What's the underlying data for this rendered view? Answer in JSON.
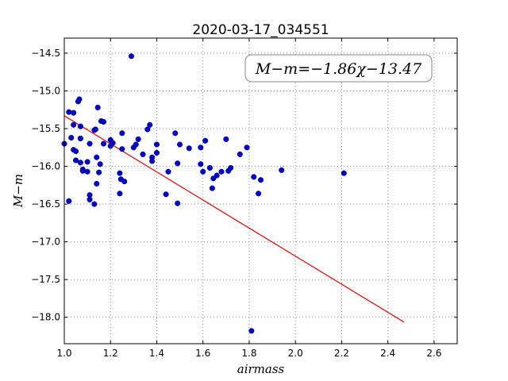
{
  "chart_data": {
    "type": "scatter",
    "title": "2020-03-17_034551",
    "xlabel": "airmass",
    "ylabel": "M−m",
    "xlim": [
      1.0,
      2.7
    ],
    "ylim": [
      -18.35,
      -14.3
    ],
    "y_inverted": true,
    "grid": true,
    "xticks": [
      "1.0",
      "1.2",
      "1.4",
      "1.6",
      "1.8",
      "2.0",
      "2.2",
      "2.4",
      "2.6"
    ],
    "yticks": [
      "−14.5",
      "−15.0",
      "−15.5",
      "−16.0",
      "−16.5",
      "−17.0",
      "−17.5",
      "−18.0"
    ],
    "annotation": "M−m=−1.86χ−13.47",
    "colors": {
      "points": "#0000cc",
      "fit_line": "#dd0000",
      "grid": "#888888"
    },
    "fit": {
      "slope": -1.86,
      "intercept": -13.47,
      "x_range": [
        1.0,
        2.47
      ]
    },
    "points": [
      [
        1.0,
        -15.7
      ],
      [
        1.02,
        -15.28
      ],
      [
        1.02,
        -16.46
      ],
      [
        1.03,
        -15.62
      ],
      [
        1.04,
        -15.29
      ],
      [
        1.04,
        -15.45
      ],
      [
        1.04,
        -15.78
      ],
      [
        1.05,
        -15.92
      ],
      [
        1.05,
        -15.8
      ],
      [
        1.06,
        -15.14
      ],
      [
        1.065,
        -15.11
      ],
      [
        1.07,
        -15.47
      ],
      [
        1.07,
        -15.63
      ],
      [
        1.07,
        -15.63
      ],
      [
        1.07,
        -15.95
      ],
      [
        1.08,
        -16.04
      ],
      [
        1.08,
        -16.06
      ],
      [
        1.1,
        -15.94
      ],
      [
        1.1,
        -16.07
      ],
      [
        1.11,
        -16.38
      ],
      [
        1.11,
        -16.44
      ],
      [
        1.11,
        -15.7
      ],
      [
        1.13,
        -16.5
      ],
      [
        1.13,
        -15.52
      ],
      [
        1.135,
        -15.51
      ],
      [
        1.14,
        -16.23
      ],
      [
        1.14,
        -15.88
      ],
      [
        1.145,
        -15.22
      ],
      [
        1.15,
        -16.08
      ],
      [
        1.155,
        -15.97
      ],
      [
        1.16,
        -15.4
      ],
      [
        1.17,
        -15.41
      ],
      [
        1.17,
        -15.7
      ],
      [
        1.2,
        -15.65
      ],
      [
        1.2,
        -15.73
      ],
      [
        1.21,
        -15.69
      ],
      [
        1.24,
        -16.36
      ],
      [
        1.24,
        -16.09
      ],
      [
        1.245,
        -16.17
      ],
      [
        1.25,
        -15.56
      ],
      [
        1.25,
        -15.77
      ],
      [
        1.26,
        -16.2
      ],
      [
        1.3,
        -15.75
      ],
      [
        1.29,
        -14.54
      ],
      [
        1.31,
        -15.71
      ],
      [
        1.32,
        -15.64
      ],
      [
        1.34,
        -15.84
      ],
      [
        1.36,
        -15.51
      ],
      [
        1.37,
        -15.45
      ],
      [
        1.38,
        -15.93
      ],
      [
        1.38,
        -15.88
      ],
      [
        1.4,
        -15.82
      ],
      [
        1.4,
        -15.71
      ],
      [
        1.44,
        -16.37
      ],
      [
        1.45,
        -16.07
      ],
      [
        1.48,
        -15.56
      ],
      [
        1.49,
        -16.49
      ],
      [
        1.49,
        -15.96
      ],
      [
        1.5,
        -15.71
      ],
      [
        1.54,
        -15.76
      ],
      [
        1.59,
        -15.75
      ],
      [
        1.59,
        -15.97
      ],
      [
        1.6,
        -16.07
      ],
      [
        1.61,
        -15.66
      ],
      [
        1.63,
        -16.02
      ],
      [
        1.64,
        -16.29
      ],
      [
        1.645,
        -16.16
      ],
      [
        1.66,
        -16.12
      ],
      [
        1.68,
        -16.07
      ],
      [
        1.7,
        -15.64
      ],
      [
        1.71,
        -16.06
      ],
      [
        1.72,
        -16.02
      ],
      [
        1.76,
        -15.84
      ],
      [
        1.79,
        -15.75
      ],
      [
        1.81,
        -18.18
      ],
      [
        1.82,
        -16.14
      ],
      [
        1.84,
        -16.36
      ],
      [
        1.85,
        -16.18
      ],
      [
        1.94,
        -16.05
      ],
      [
        2.21,
        -16.09
      ]
    ]
  }
}
